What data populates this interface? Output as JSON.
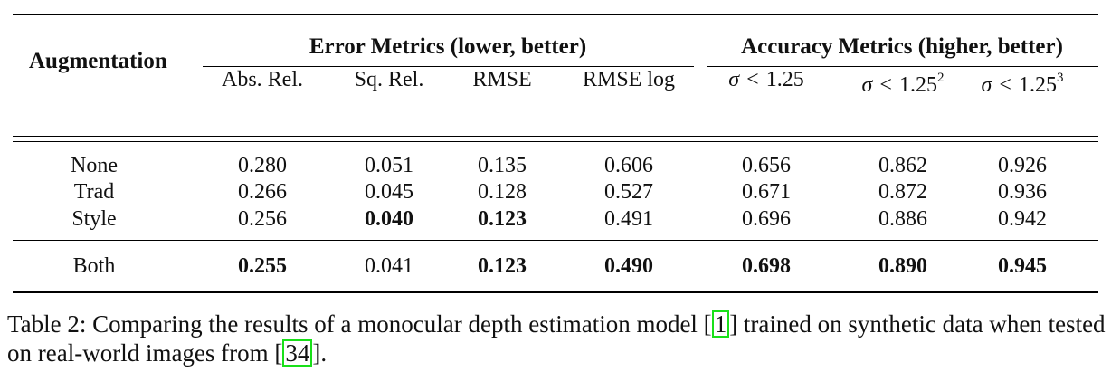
{
  "table": {
    "group_header": "Augmentation",
    "error_header": "Error Metrics (lower, better)",
    "accuracy_header": "Accuracy Metrics (higher, better)",
    "columns": [
      {
        "sym": "",
        "rel": "",
        "val": "Abs. Rel.",
        "exp": ""
      },
      {
        "sym": "",
        "rel": "",
        "val": "Sq. Rel.",
        "exp": ""
      },
      {
        "sym": "",
        "rel": "",
        "val": "RMSE",
        "exp": ""
      },
      {
        "sym": "",
        "rel": "",
        "val": "RMSE log",
        "exp": ""
      },
      {
        "sym": "σ",
        "rel": "<",
        "val": "1.25",
        "exp": ""
      },
      {
        "sym": "σ",
        "rel": "<",
        "val": "1.25",
        "exp": "2"
      },
      {
        "sym": "σ",
        "rel": "<",
        "val": "1.25",
        "exp": "3"
      }
    ],
    "rows": [
      {
        "name": "None",
        "values": [
          "0.280",
          "0.051",
          "0.135",
          "0.606",
          "0.656",
          "0.862",
          "0.926"
        ],
        "bold": []
      },
      {
        "name": "Trad",
        "values": [
          "0.266",
          "0.045",
          "0.128",
          "0.527",
          "0.671",
          "0.872",
          "0.936"
        ],
        "bold": []
      },
      {
        "name": "Style",
        "values": [
          "0.256",
          "0.040",
          "0.123",
          "0.491",
          "0.696",
          "0.886",
          "0.942"
        ],
        "bold": [
          1,
          2
        ]
      },
      {
        "name": "Both",
        "values": [
          "0.255",
          "0.041",
          "0.123",
          "0.490",
          "0.698",
          "0.890",
          "0.945"
        ],
        "bold": [
          0,
          2,
          3,
          4,
          5,
          6
        ]
      }
    ]
  },
  "caption": {
    "part1": "Table 2: Comparing the results of a monocular depth estimation model [",
    "ref1": "1",
    "part2": "] trained on synthetic data when tested on real-world images from [",
    "ref2": "34",
    "part3": "]."
  }
}
